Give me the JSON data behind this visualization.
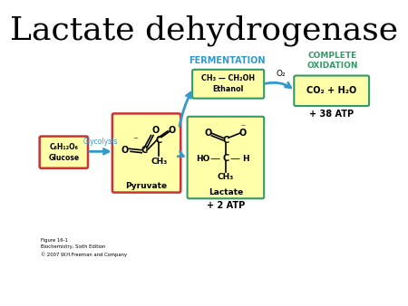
{
  "title": "Lactate dehydrogenase",
  "title_fontsize": 26,
  "bg_color": "#ffffff",
  "box_yellow": "#ffffaa",
  "box_border_red": "#cc3333",
  "box_border_green": "#339966",
  "arrow_color": "#3399cc",
  "text_blue": "#3399cc",
  "text_green": "#339966",
  "glucose_label": "C₆H₁₂O₆\nGlucose",
  "glycolysis_label": "Glycolysis",
  "pyruvate_label": "Pyruvate",
  "ethanol_label": "CH₃ — CH₂OH\nEthanol",
  "lactate_label": "Lactate",
  "fermentation_label": "FERMENTATION",
  "complete_oxidation_label": "COMPLETE\nOXIDATION",
  "co2_label": "CO₂ + H₂O",
  "o2_label": "O₂",
  "atp38_label": "+ 38 ATP",
  "atp2_label": "+ 2 ATP",
  "figure_caption": "Figure 16-1\nBiochemistry, Sixth Edition\n© 2007 W.H.Freeman and Company"
}
